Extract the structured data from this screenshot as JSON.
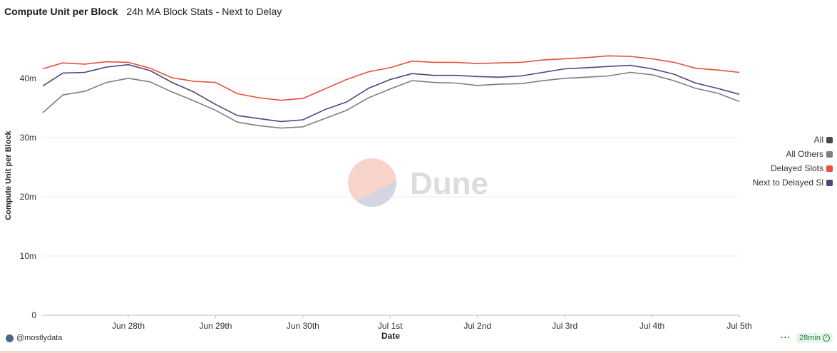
{
  "header": {
    "title": "Compute Unit per Block",
    "subtitle": "24h MA Block Stats - Next to Delay"
  },
  "watermark": {
    "text": "Dune"
  },
  "footer": {
    "author": "@mostlydata",
    "more": "···",
    "refresh": "28min"
  },
  "legend": [
    {
      "label": "All",
      "color": "#4a4a4a"
    },
    {
      "label": "All Others",
      "color": "#7f7f7f"
    },
    {
      "label": "Delayed Slots",
      "color": "#e8503a"
    },
    {
      "label": "Next to Delayed Sl",
      "color": "#4b4682"
    }
  ],
  "chart_data": {
    "type": "line",
    "xlabel": "Date",
    "ylabel": "Compute Unit per Block",
    "y_ticks": [
      {
        "value": 0,
        "label": "0"
      },
      {
        "value": 10000000,
        "label": "10m"
      },
      {
        "value": 20000000,
        "label": "20m"
      },
      {
        "value": 30000000,
        "label": "30m"
      },
      {
        "value": 40000000,
        "label": "40m"
      }
    ],
    "x_ticks": [
      {
        "value": 1,
        "label": "Jun 28th"
      },
      {
        "value": 2,
        "label": "Jun 29th"
      },
      {
        "value": 3,
        "label": "Jun 30th"
      },
      {
        "value": 4,
        "label": "Jul 1st"
      },
      {
        "value": 5,
        "label": "Jul 2nd"
      },
      {
        "value": 6,
        "label": "Jul 3rd"
      },
      {
        "value": 7,
        "label": "Jul 4th"
      },
      {
        "value": 8,
        "label": "Jul 5th"
      }
    ],
    "xlim": [
      0.02,
      8.0
    ],
    "ylim": [
      0,
      46000000
    ],
    "grid": true,
    "legend_position": "right",
    "x": [
      0.02,
      0.25,
      0.5,
      0.75,
      1.0,
      1.25,
      1.5,
      1.75,
      2.0,
      2.25,
      2.5,
      2.75,
      3.0,
      3.25,
      3.5,
      3.75,
      4.0,
      4.25,
      4.5,
      4.75,
      5.0,
      5.25,
      5.5,
      5.75,
      6.0,
      6.25,
      6.5,
      6.75,
      7.0,
      7.25,
      7.5,
      7.75,
      8.0
    ],
    "series": [
      {
        "name": "All Others",
        "color": "#7f7f7f",
        "values": [
          34200000,
          37200000,
          37800000,
          39300000,
          40000000,
          39400000,
          37700000,
          36200000,
          34600000,
          32600000,
          32000000,
          31600000,
          31800000,
          33200000,
          34600000,
          36700000,
          38200000,
          39600000,
          39300000,
          39200000,
          38800000,
          39000000,
          39100000,
          39600000,
          40000000,
          40200000,
          40400000,
          41000000,
          40600000,
          39600000,
          38300000,
          37500000,
          36100000
        ]
      },
      {
        "name": "Next to Delayed Sl",
        "color": "#4b4682",
        "values": [
          38700000,
          40900000,
          41000000,
          41900000,
          42300000,
          41300000,
          39300000,
          37700000,
          35600000,
          33700000,
          33200000,
          32700000,
          33000000,
          34700000,
          36000000,
          38300000,
          39800000,
          40800000,
          40500000,
          40500000,
          40300000,
          40200000,
          40400000,
          41000000,
          41600000,
          41800000,
          42000000,
          42200000,
          41600000,
          40700000,
          39200000,
          38300000,
          37300000
        ]
      },
      {
        "name": "Delayed Slots",
        "color": "#e8503a",
        "values": [
          41600000,
          42600000,
          42400000,
          42800000,
          42700000,
          41700000,
          40100000,
          39500000,
          39300000,
          37400000,
          36700000,
          36300000,
          36600000,
          38200000,
          39800000,
          41100000,
          41800000,
          42900000,
          42700000,
          42700000,
          42500000,
          42600000,
          42700000,
          43100000,
          43300000,
          43500000,
          43800000,
          43700000,
          43300000,
          42700000,
          41700000,
          41400000,
          41000000
        ]
      }
    ]
  }
}
